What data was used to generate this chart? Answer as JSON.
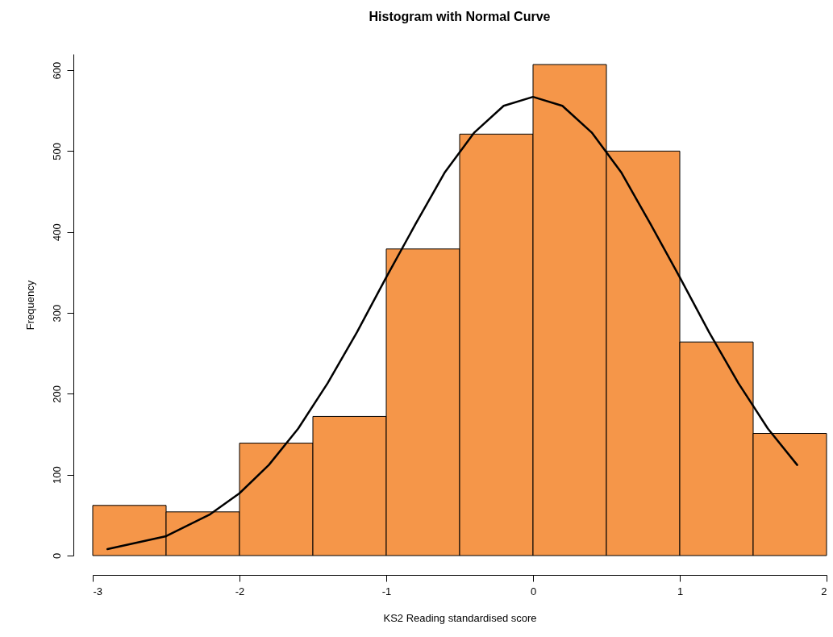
{
  "chart_data": {
    "type": "histogram",
    "title": "Histogram with Normal Curve",
    "xlabel": "KS2 Reading standardised score",
    "ylabel": "Frequency",
    "bins": [
      -3,
      -2.5,
      -2,
      -1.5,
      -1,
      -0.5,
      0,
      0.5,
      1,
      1.5,
      2
    ],
    "values": [
      62,
      54,
      139,
      172,
      379,
      521,
      607,
      500,
      264,
      151
    ],
    "color": "#f59649",
    "series": [
      {
        "type": "line",
        "color": "#000000",
        "x": [
          -2.9,
          -2.5,
          -2.2,
          -2.0,
          -1.8,
          -1.6,
          -1.4,
          -1.2,
          -1.0,
          -0.8,
          -0.6,
          -0.4,
          -0.2,
          0,
          0.2,
          0.4,
          0.6,
          0.8,
          1.0,
          1.2,
          1.4,
          1.6,
          1.8
        ],
        "values": [
          8,
          24,
          51,
          77,
          112,
          157,
          213,
          276,
          344,
          410,
          474,
          523,
          556,
          567,
          556,
          523,
          474,
          410,
          344,
          276,
          213,
          157,
          112
        ]
      }
    ],
    "xlim": [
      -3,
      2
    ],
    "xticks": [
      -3,
      -2,
      -1,
      0,
      1,
      2
    ],
    "ylim": [
      0,
      620
    ],
    "yticks": [
      0,
      100,
      200,
      300,
      400,
      500,
      600
    ],
    "grid": false
  }
}
